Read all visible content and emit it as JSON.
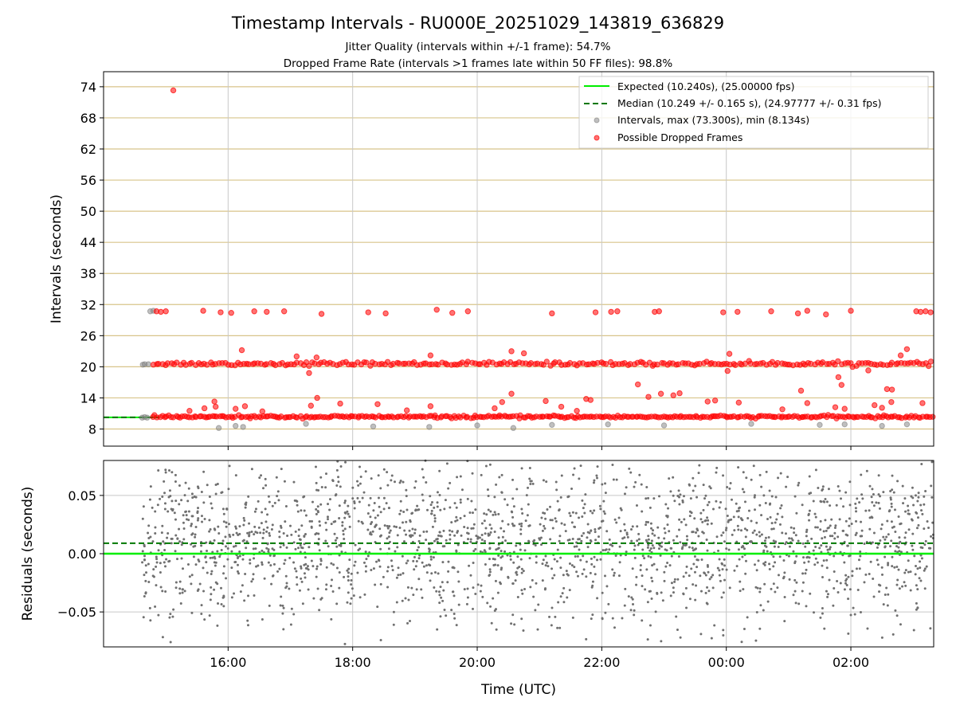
{
  "chart_data": {
    "type": "scatter",
    "title": "Timestamp Intervals - RU000E_20251029_143819_636829",
    "subtitle_lines": [
      "Jitter Quality (intervals within +/-1 frame): 54.7%",
      "Dropped Frame Rate (intervals >1 frames late within 50 FF files): 98.8%"
    ],
    "xlabel": "Time (UTC)",
    "x_unit": "hours since 14:00 UTC",
    "xlim": [
      0.0,
      13.33
    ],
    "xticks": [
      {
        "value": 2,
        "label": "16:00"
      },
      {
        "value": 4,
        "label": "18:00"
      },
      {
        "value": 6,
        "label": "20:00"
      },
      {
        "value": 8,
        "label": "22:00"
      },
      {
        "value": 10,
        "label": "00:00"
      },
      {
        "value": 12,
        "label": "02:00"
      }
    ],
    "panels": [
      {
        "name": "intervals",
        "ylabel": "Intervals (seconds)",
        "ylim": [
          4.7,
          76.9
        ],
        "yticks": [
          {
            "value": 8,
            "label": "8"
          },
          {
            "value": 14,
            "label": "14"
          },
          {
            "value": 20,
            "label": "20"
          },
          {
            "value": 26,
            "label": "26"
          },
          {
            "value": 32,
            "label": "32"
          },
          {
            "value": 38,
            "label": "38"
          },
          {
            "value": 44,
            "label": "44"
          },
          {
            "value": 50,
            "label": "50"
          },
          {
            "value": 56,
            "label": "56"
          },
          {
            "value": 62,
            "label": "62"
          },
          {
            "value": 68,
            "label": "68"
          },
          {
            "value": 74,
            "label": "74"
          }
        ],
        "expected": 10.24,
        "median": 10.249,
        "grid_colors": {
          "horizontal": "#d8c48a",
          "vertical": "#c8c8c8"
        },
        "series": [
          {
            "name": "Expected (10.240s), (25.00000 fps)",
            "kind": "hline",
            "color": "#00ee00"
          },
          {
            "name": "Median (10.249 +/- 0.165 s), (24.97777 +/- 0.31 fps)",
            "kind": "dashed-hline",
            "color": "#007700"
          },
          {
            "name": "Intervals, max (73.300s), min (8.134s)",
            "kind": "scatter",
            "color": "#808080",
            "points": [
              [
                0.62,
                10.2
              ],
              [
                0.66,
                10.3
              ],
              [
                0.7,
                10.2
              ],
              [
                0.72,
                20.5
              ],
              [
                0.66,
                20.5
              ],
              [
                0.75,
                30.7
              ],
              [
                0.8,
                30.8
              ],
              [
                0.63,
                20.4
              ],
              [
                1.85,
                8.2
              ],
              [
                2.12,
                8.6
              ],
              [
                2.24,
                8.4
              ],
              [
                3.25,
                9.0
              ],
              [
                4.33,
                8.5
              ],
              [
                5.23,
                8.4
              ],
              [
                6.0,
                8.7
              ],
              [
                6.58,
                8.2
              ],
              [
                7.2,
                8.8
              ],
              [
                8.1,
                8.9
              ],
              [
                9.0,
                8.7
              ],
              [
                10.4,
                9.0
              ],
              [
                11.5,
                8.8
              ],
              [
                11.9,
                8.9
              ],
              [
                12.5,
                8.6
              ],
              [
                12.9,
                8.9
              ]
            ]
          },
          {
            "name": "Possible Dropped Frames",
            "kind": "scatter",
            "color": "#ff0000",
            "points": [
              [
                1.12,
                73.3
              ],
              [
                0.85,
                30.7
              ],
              [
                0.92,
                30.6
              ],
              [
                1.0,
                30.7
              ],
              [
                1.6,
                30.8
              ],
              [
                1.88,
                30.5
              ],
              [
                2.05,
                30.4
              ],
              [
                2.42,
                30.7
              ],
              [
                2.62,
                30.6
              ],
              [
                2.9,
                30.7
              ],
              [
                3.5,
                30.2
              ],
              [
                4.25,
                30.5
              ],
              [
                4.53,
                30.3
              ],
              [
                5.35,
                31.0
              ],
              [
                5.6,
                30.4
              ],
              [
                5.85,
                30.7
              ],
              [
                7.2,
                30.3
              ],
              [
                7.9,
                30.5
              ],
              [
                8.15,
                30.6
              ],
              [
                8.25,
                30.7
              ],
              [
                8.85,
                30.6
              ],
              [
                8.92,
                30.7
              ],
              [
                9.95,
                30.5
              ],
              [
                10.18,
                30.6
              ],
              [
                10.72,
                30.7
              ],
              [
                11.15,
                30.3
              ],
              [
                11.3,
                30.8
              ],
              [
                11.6,
                30.1
              ],
              [
                12.0,
                30.8
              ],
              [
                13.05,
                30.7
              ],
              [
                13.12,
                30.6
              ],
              [
                13.2,
                30.7
              ],
              [
                13.28,
                30.5
              ],
              [
                2.22,
                23.2
              ],
              [
                3.1,
                22.0
              ],
              [
                3.42,
                21.8
              ],
              [
                5.25,
                22.2
              ],
              [
                6.55,
                23.0
              ],
              [
                6.75,
                22.6
              ],
              [
                10.05,
                22.5
              ],
              [
                12.9,
                23.4
              ],
              [
                12.8,
                22.2
              ],
              [
                3.3,
                18.8
              ],
              [
                10.02,
                19.2
              ],
              [
                12.28,
                19.3
              ],
              [
                11.8,
                18.0
              ],
              [
                11.85,
                16.5
              ],
              [
                8.58,
                16.6
              ],
              [
                12.58,
                15.7
              ],
              [
                12.66,
                15.6
              ],
              [
                11.2,
                15.4
              ],
              [
                6.55,
                14.8
              ],
              [
                8.95,
                14.8
              ],
              [
                9.25,
                14.9
              ],
              [
                9.15,
                14.5
              ],
              [
                8.75,
                14.2
              ],
              [
                3.43,
                14.0
              ],
              [
                7.75,
                13.8
              ],
              [
                7.82,
                13.6
              ],
              [
                1.78,
                13.3
              ],
              [
                6.4,
                13.2
              ],
              [
                7.1,
                13.4
              ],
              [
                9.82,
                13.5
              ],
              [
                10.2,
                13.1
              ],
              [
                9.7,
                13.3
              ],
              [
                11.3,
                13.0
              ],
              [
                12.65,
                13.2
              ],
              [
                13.15,
                13.0
              ],
              [
                4.4,
                12.8
              ],
              [
                3.8,
                12.9
              ],
              [
                1.62,
                12.0
              ],
              [
                1.8,
                12.3
              ],
              [
                2.12,
                11.9
              ],
              [
                2.27,
                12.4
              ],
              [
                3.33,
                12.5
              ],
              [
                5.25,
                12.4
              ],
              [
                6.28,
                12.0
              ],
              [
                7.35,
                12.3
              ],
              [
                11.75,
                12.2
              ],
              [
                11.9,
                11.9
              ],
              [
                12.5,
                12.1
              ],
              [
                12.38,
                12.6
              ],
              [
                1.38,
                11.5
              ],
              [
                2.55,
                11.4
              ],
              [
                4.87,
                11.6
              ],
              [
                7.6,
                11.5
              ],
              [
                10.9,
                11.8
              ]
            ],
            "bands": [
              {
                "y": 20.6,
                "count": 260
              },
              {
                "y": 10.35,
                "count": 340
              }
            ]
          }
        ]
      },
      {
        "name": "residuals",
        "ylabel": "Residuals (seconds)",
        "ylim": [
          -0.08,
          0.08
        ],
        "yticks": [
          {
            "value": -0.05,
            "label": "−0.05"
          },
          {
            "value": 0.0,
            "label": "0.00"
          },
          {
            "value": 0.05,
            "label": "0.05"
          }
        ],
        "expected": 0.0,
        "median": 0.009,
        "series": [
          {
            "name": "Residuals",
            "kind": "scatter",
            "color": "#707070",
            "approx_count": 2200,
            "x_range": [
              0.62,
              13.33
            ],
            "spread_sd": 0.035
          }
        ]
      }
    ]
  }
}
